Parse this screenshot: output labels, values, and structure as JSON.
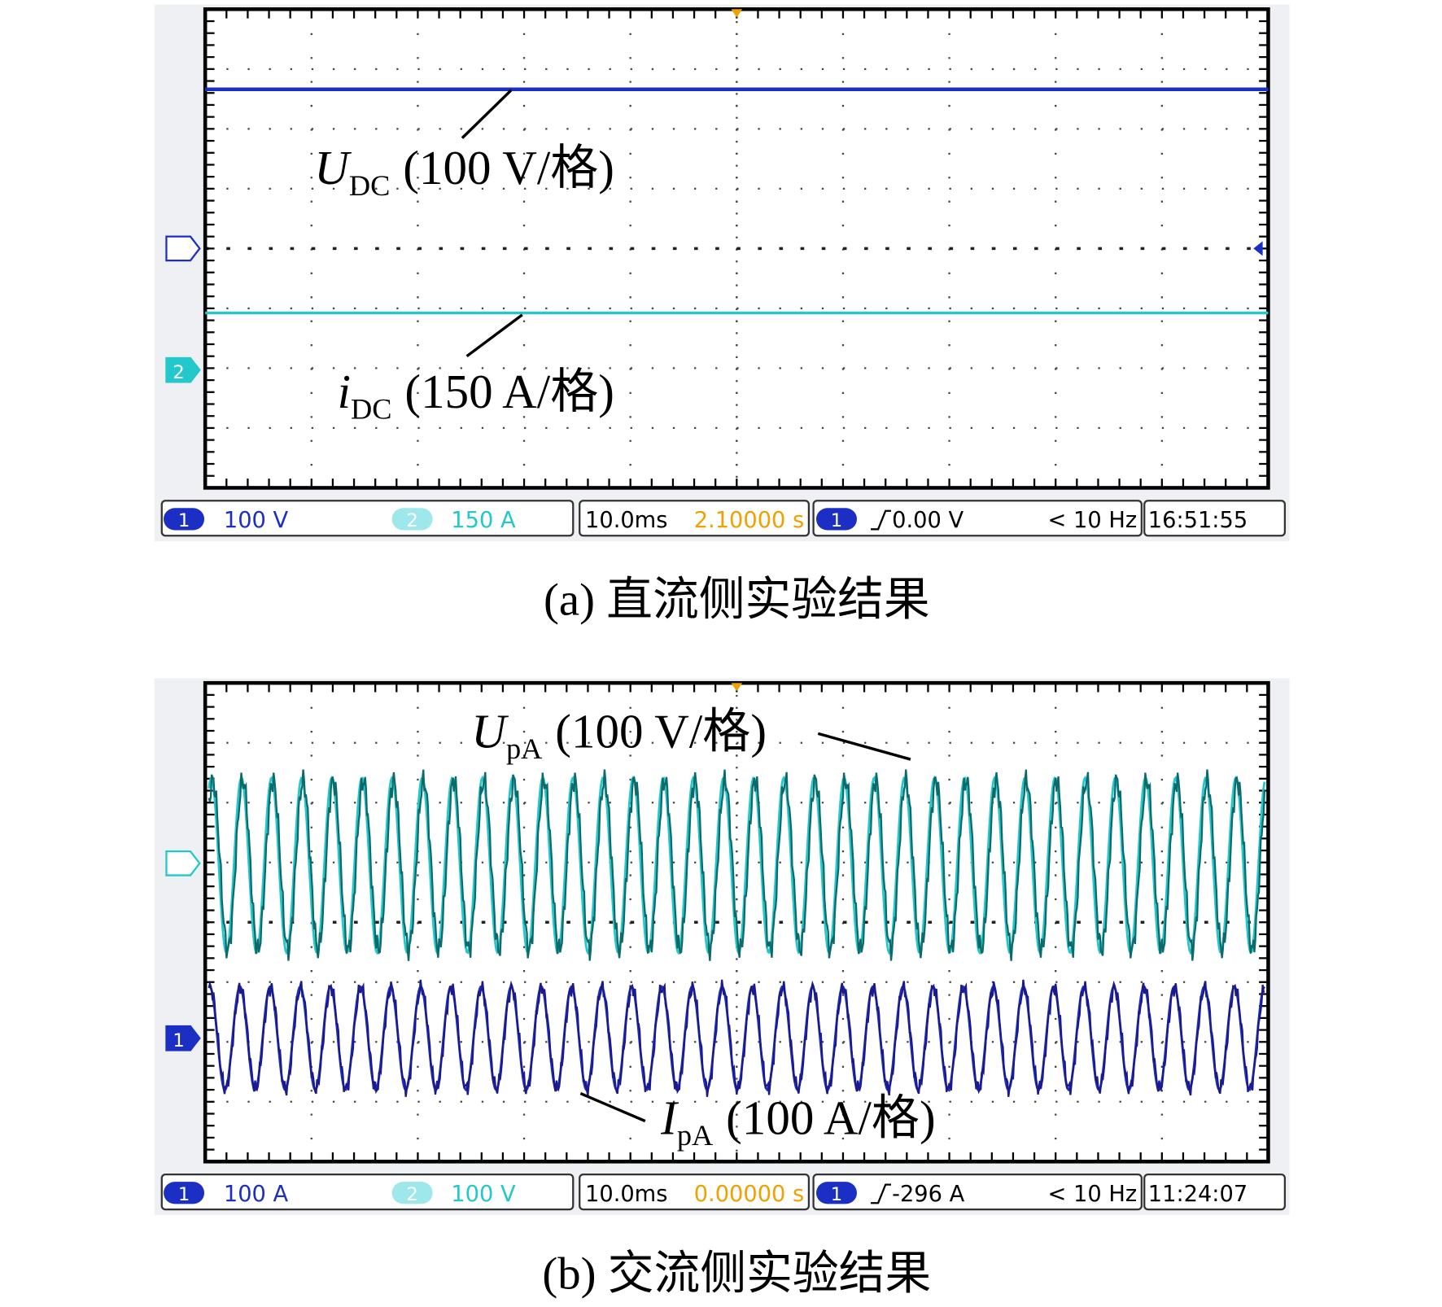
{
  "panels": [
    {
      "label": "(a) 直流侧实验结果",
      "annotations": [
        {
          "symbol": "U",
          "subscript": "DC",
          "scale": "(100 V/格)"
        },
        {
          "symbol": "i",
          "subscript": "DC",
          "scale": "(150 A/格)"
        }
      ],
      "channel_markers": [
        "1",
        "2"
      ],
      "status_bar": {
        "ch1": "100 V",
        "ch2": "150 A",
        "timebase": "10.0ms",
        "position": "2.10000 s",
        "trigger": "0.00 V",
        "frequency": "< 10 Hz",
        "clock": "16:51:55"
      }
    },
    {
      "label": "(b) 交流侧实验结果",
      "annotations": [
        {
          "symbol": "U",
          "subscript": "pA",
          "scale": "(100 V/格)"
        },
        {
          "symbol": "I",
          "subscript": "pA",
          "scale": "(100 A/格)"
        }
      ],
      "channel_markers": [
        "1",
        "2"
      ],
      "status_bar": {
        "ch1": "100 A",
        "ch2": "100 V",
        "timebase": "10.0ms",
        "position": "0.00000 s",
        "trigger": "-296 A",
        "frequency": "< 10 Hz",
        "clock": "11:24:07"
      }
    }
  ]
}
